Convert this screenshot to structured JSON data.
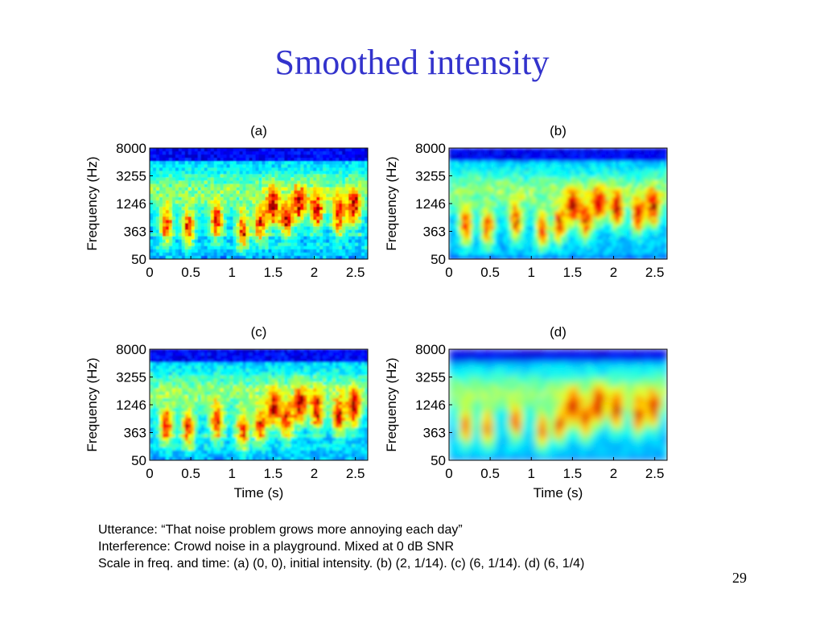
{
  "slide": {
    "title": "Smoothed intensity",
    "page_number": "29",
    "caption": [
      "Utterance: “That noise problem grows more annoying each day”",
      "Interference: Crowd noise in a playground. Mixed at 0 dB SNR",
      "Scale in freq. and time: (a) (0, 0), initial intensity. (b) (2, 1/14). (c) (6, 1/14). (d) (6, 1/4)"
    ]
  },
  "chart_data": [
    {
      "type": "heatmap",
      "title": "(a)",
      "xlabel": "",
      "ylabel": "Frequency (Hz)",
      "x_ticks": [
        "0",
        "0.5",
        "1",
        "1.5",
        "2",
        "2.5"
      ],
      "y_ticks": [
        "8000",
        "3255",
        "1246",
        "363",
        "50"
      ],
      "xlim": [
        0,
        2.65
      ],
      "colormap": "jet",
      "smoothing": "none"
    },
    {
      "type": "heatmap",
      "title": "(b)",
      "xlabel": "",
      "ylabel": "Frequency (Hz)",
      "x_ticks": [
        "0",
        "0.5",
        "1",
        "1.5",
        "2",
        "2.5"
      ],
      "y_ticks": [
        "8000",
        "3255",
        "1246",
        "363",
        "50"
      ],
      "xlim": [
        0,
        2.65
      ],
      "colormap": "jet",
      "smoothing": "low"
    },
    {
      "type": "heatmap",
      "title": "(c)",
      "xlabel": "Time (s)",
      "ylabel": "Frequency (Hz)",
      "x_ticks": [
        "0",
        "0.5",
        "1",
        "1.5",
        "2",
        "2.5"
      ],
      "y_ticks": [
        "8000",
        "3255",
        "1246",
        "363",
        "50"
      ],
      "xlim": [
        0,
        2.65
      ],
      "colormap": "jet",
      "smoothing": "medium"
    },
    {
      "type": "heatmap",
      "title": "(d)",
      "xlabel": "Time (s)",
      "ylabel": "Frequency (Hz)",
      "x_ticks": [
        "0",
        "0.5",
        "1",
        "1.5",
        "2",
        "2.5"
      ],
      "y_ticks": [
        "8000",
        "3255",
        "1246",
        "363",
        "50"
      ],
      "xlim": [
        0,
        2.65
      ],
      "colormap": "jet",
      "smoothing": "high"
    }
  ]
}
